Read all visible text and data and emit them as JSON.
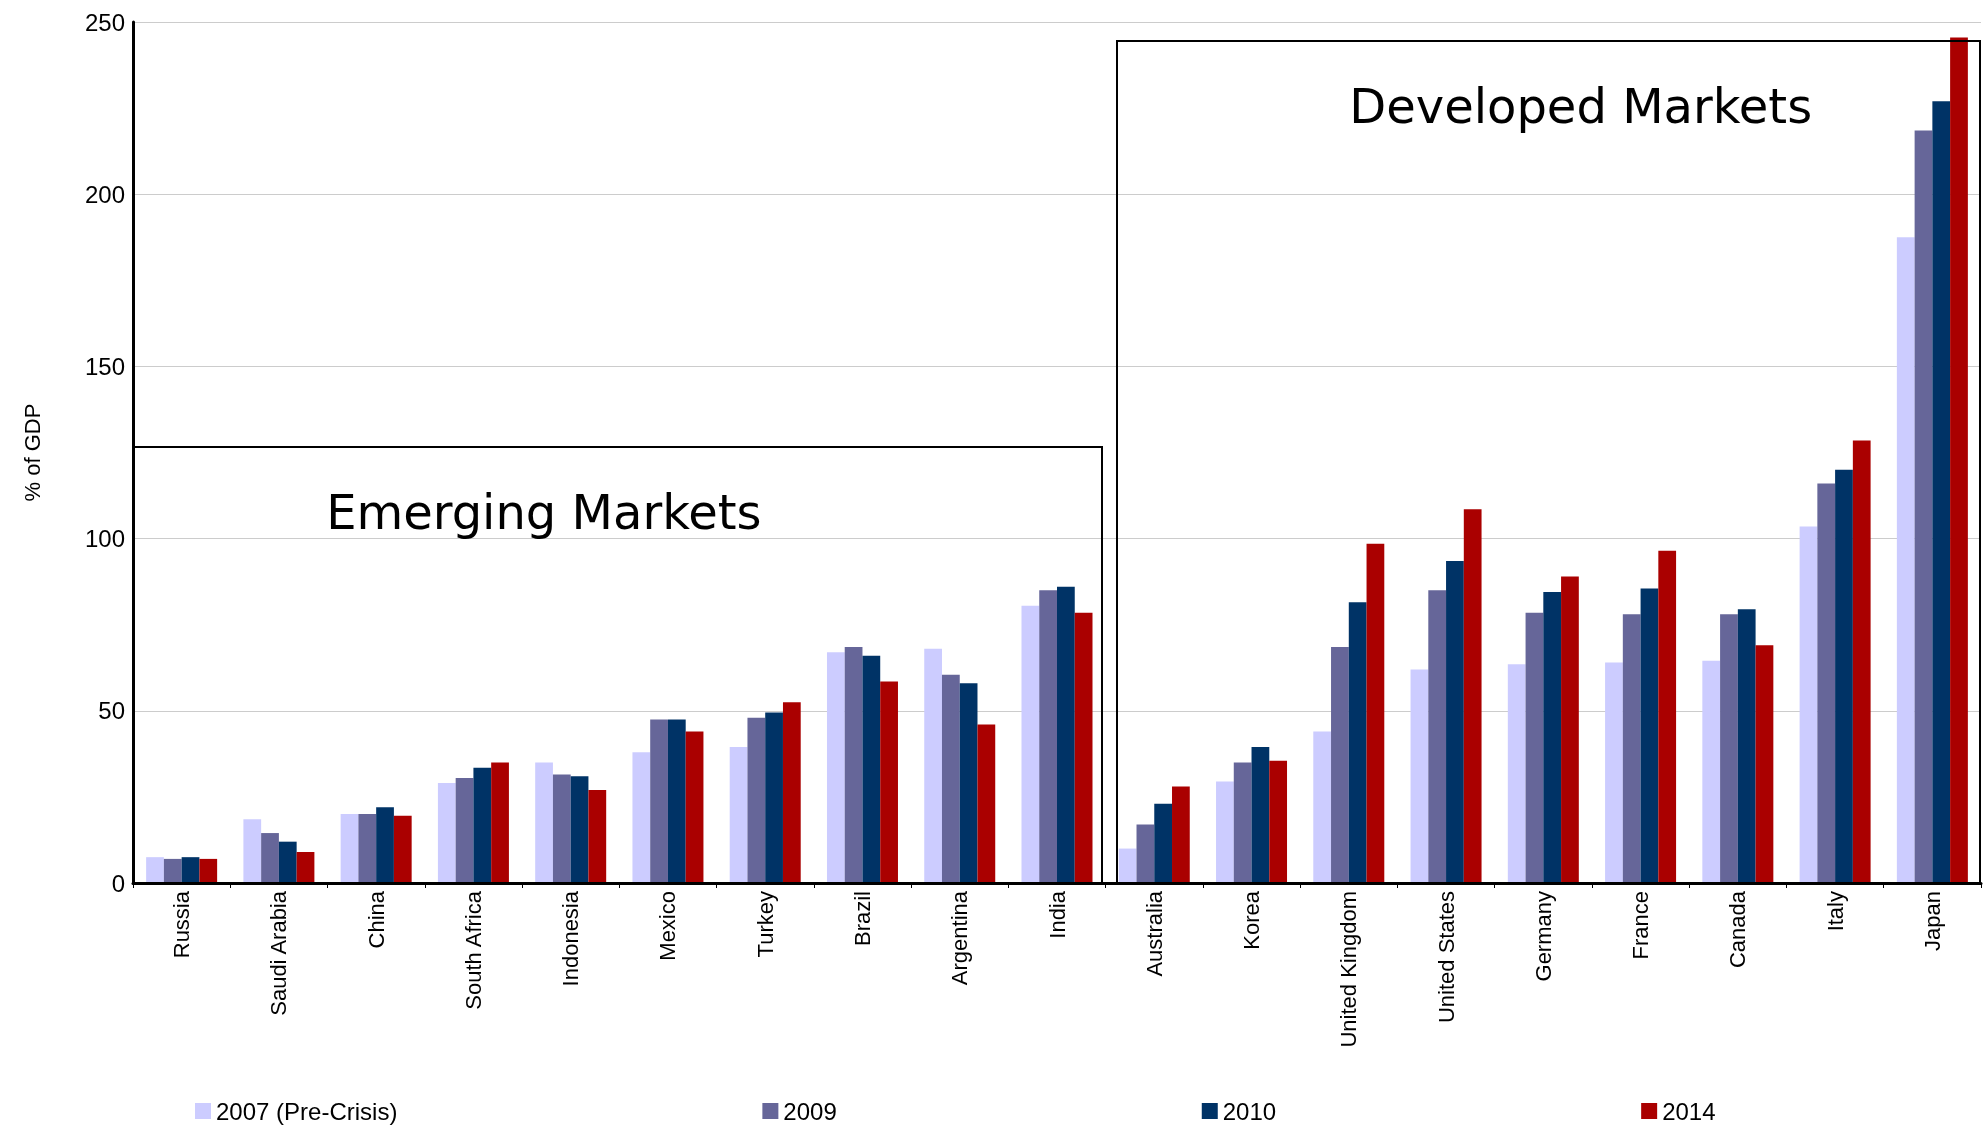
{
  "chart_data": {
    "type": "bar",
    "ylabel": "% of GDP",
    "categories": [
      "Russia",
      "Saudi Arabia",
      "China",
      "South Africa",
      "Indonesia",
      "Mexico",
      "Turkey",
      "Brazil",
      "Argentina",
      "India",
      "Australia",
      "Korea",
      "United Kingdom",
      "United States",
      "Germany",
      "France",
      "Canada",
      "Italy",
      "Japan"
    ],
    "series": [
      {
        "name": "2007 (Pre-Crisis)",
        "color": "#ccccff",
        "values": [
          7.5,
          18.5,
          20,
          29,
          35,
          38,
          39.5,
          67,
          68,
          80.5,
          10,
          29.5,
          44,
          62,
          63.5,
          64,
          64.5,
          103.5,
          187.5
        ]
      },
      {
        "name": "2009",
        "color": "#666699",
        "values": [
          7,
          14.5,
          20,
          30.5,
          31.5,
          47.5,
          48,
          68.5,
          60.5,
          85,
          17,
          35,
          68.5,
          85,
          78.5,
          78,
          78,
          116,
          218.5
        ]
      },
      {
        "name": "2010",
        "color": "#003366",
        "values": [
          7.5,
          12,
          22,
          33.5,
          31,
          47.5,
          49.5,
          66,
          58,
          86,
          23,
          39.5,
          81.5,
          93.5,
          84.5,
          85.5,
          79.5,
          120,
          227
        ]
      },
      {
        "name": "2014",
        "color": "#aa0000",
        "values": [
          7,
          9,
          19.5,
          35,
          27,
          44,
          52.5,
          58.5,
          46,
          78.5,
          28,
          35.5,
          98.5,
          108.5,
          89,
          96.5,
          69,
          128.5,
          245.5
        ]
      }
    ],
    "annotations": [
      "Emerging Markets",
      "Developed Markets"
    ],
    "ylim": [
      0,
      250
    ],
    "yticks": [
      0,
      50,
      100,
      150,
      200,
      250
    ],
    "grid": "y",
    "legend": "bottom"
  }
}
